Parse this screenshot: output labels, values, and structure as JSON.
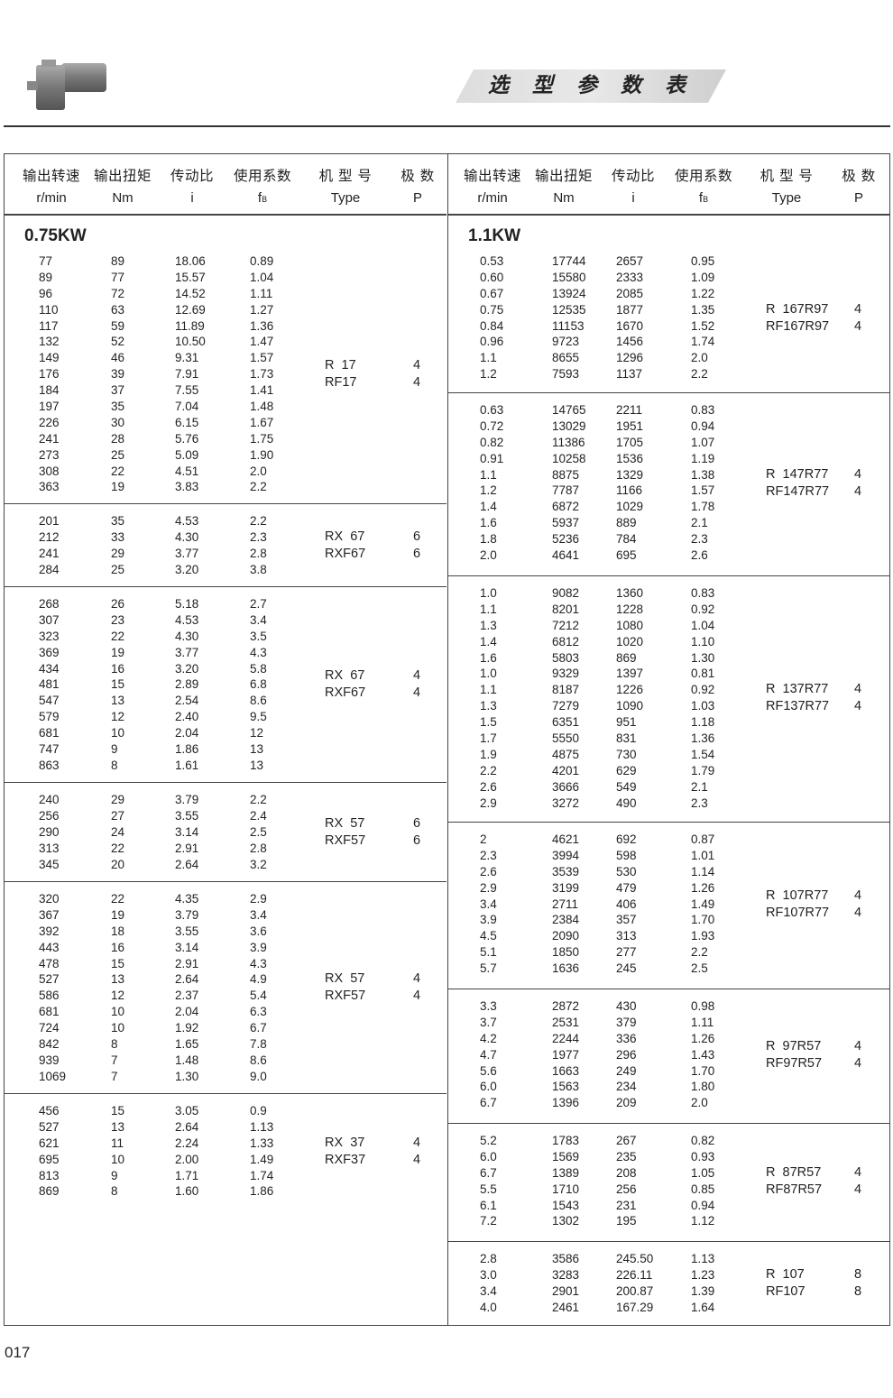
{
  "header": {
    "title": "选 型 参 数 表",
    "product_image": "gear-motor-icon"
  },
  "columns": [
    {
      "zh": "输出转速",
      "unit": "r/min"
    },
    {
      "zh": "输出扭矩",
      "unit": "Nm"
    },
    {
      "zh": "传动比",
      "unit": "i"
    },
    {
      "zh": "使用系数",
      "unit": "f",
      "unit_sub": "B"
    },
    {
      "zh": "机 型 号",
      "unit": "Type"
    },
    {
      "zh": "极  数",
      "unit": "P"
    }
  ],
  "left": {
    "power": "0.75KW",
    "groups": [
      {
        "type": [
          "R  17",
          "RF17"
        ],
        "poles": [
          "4",
          "4"
        ],
        "rows": [
          [
            "77",
            "89",
            "18.06",
            "0.89"
          ],
          [
            "89",
            "77",
            "15.57",
            "1.04"
          ],
          [
            "96",
            "72",
            "14.52",
            "1.11"
          ],
          [
            "110",
            "63",
            "12.69",
            "1.27"
          ],
          [
            "117",
            "59",
            "11.89",
            "1.36"
          ],
          [
            "132",
            "52",
            "10.50",
            "1.47"
          ],
          [
            "149",
            "46",
            "9.31",
            "1.57"
          ],
          [
            "176",
            "39",
            "7.91",
            "1.73"
          ],
          [
            "184",
            "37",
            "7.55",
            "1.41"
          ],
          [
            "197",
            "35",
            "7.04",
            "1.48"
          ],
          [
            "226",
            "30",
            "6.15",
            "1.67"
          ],
          [
            "241",
            "28",
            "5.76",
            "1.75"
          ],
          [
            "273",
            "25",
            "5.09",
            "1.90"
          ],
          [
            "308",
            "22",
            "4.51",
            "2.0"
          ],
          [
            "363",
            "19",
            "3.83",
            "2.2"
          ]
        ]
      },
      {
        "type": [
          "RX  67",
          "RXF67"
        ],
        "poles": [
          "6",
          "6"
        ],
        "rows": [
          [
            "201",
            "35",
            "4.53",
            "2.2"
          ],
          [
            "212",
            "33",
            "4.30",
            "2.3"
          ],
          [
            "241",
            "29",
            "3.77",
            "2.8"
          ],
          [
            "284",
            "25",
            "3.20",
            "3.8"
          ]
        ]
      },
      {
        "type": [
          "RX  67",
          "RXF67"
        ],
        "poles": [
          "4",
          "4"
        ],
        "rows": [
          [
            "268",
            "26",
            "5.18",
            "2.7"
          ],
          [
            "307",
            "23",
            "4.53",
            "3.4"
          ],
          [
            "323",
            "22",
            "4.30",
            "3.5"
          ],
          [
            "369",
            "19",
            "3.77",
            "4.3"
          ],
          [
            "434",
            "16",
            "3.20",
            "5.8"
          ],
          [
            "481",
            "15",
            "2.89",
            "6.8"
          ],
          [
            "547",
            "13",
            "2.54",
            "8.6"
          ],
          [
            "579",
            "12",
            "2.40",
            "9.5"
          ],
          [
            "681",
            "10",
            "2.04",
            "12"
          ],
          [
            "747",
            "9",
            "1.86",
            "13"
          ],
          [
            "863",
            "8",
            "1.61",
            "13"
          ]
        ]
      },
      {
        "type": [
          "RX  57",
          "RXF57"
        ],
        "poles": [
          "6",
          "6"
        ],
        "rows": [
          [
            "240",
            "29",
            "3.79",
            "2.2"
          ],
          [
            "256",
            "27",
            "3.55",
            "2.4"
          ],
          [
            "290",
            "24",
            "3.14",
            "2.5"
          ],
          [
            "313",
            "22",
            "2.91",
            "2.8"
          ],
          [
            "345",
            "20",
            "2.64",
            "3.2"
          ]
        ]
      },
      {
        "type": [
          "RX  57",
          "RXF57"
        ],
        "poles": [
          "4",
          "4"
        ],
        "rows": [
          [
            "320",
            "22",
            "4.35",
            "2.9"
          ],
          [
            "367",
            "19",
            "3.79",
            "3.4"
          ],
          [
            "392",
            "18",
            "3.55",
            "3.6"
          ],
          [
            "443",
            "16",
            "3.14",
            "3.9"
          ],
          [
            "478",
            "15",
            "2.91",
            "4.3"
          ],
          [
            "527",
            "13",
            "2.64",
            "4.9"
          ],
          [
            "586",
            "12",
            "2.37",
            "5.4"
          ],
          [
            "681",
            "10",
            "2.04",
            "6.3"
          ],
          [
            "724",
            "10",
            "1.92",
            "6.7"
          ],
          [
            "842",
            "8",
            "1.65",
            "7.8"
          ],
          [
            "939",
            "7",
            "1.48",
            "8.6"
          ],
          [
            "1069",
            "7",
            "1.30",
            "9.0"
          ]
        ]
      },
      {
        "type": [
          "RX  37",
          "RXF37"
        ],
        "poles": [
          "4",
          "4"
        ],
        "rows": [
          [
            "456",
            "15",
            "3.05",
            "0.9"
          ],
          [
            "527",
            "13",
            "2.64",
            "1.13"
          ],
          [
            "621",
            "11",
            "2.24",
            "1.33"
          ],
          [
            "695",
            "10",
            "2.00",
            "1.49"
          ],
          [
            "813",
            "9",
            "1.71",
            "1.74"
          ],
          [
            "869",
            "8",
            "1.60",
            "1.86"
          ]
        ]
      }
    ]
  },
  "right": {
    "power": "1.1KW",
    "groups": [
      {
        "type": [
          "R  167R97",
          "RF167R97"
        ],
        "poles": [
          "4",
          "4"
        ],
        "rows": [
          [
            "0.53",
            "17744",
            "2657",
            "0.95"
          ],
          [
            "0.60",
            "15580",
            "2333",
            "1.09"
          ],
          [
            "0.67",
            "13924",
            "2085",
            "1.22"
          ],
          [
            "0.75",
            "12535",
            "1877",
            "1.35"
          ],
          [
            "0.84",
            "11153",
            "1670",
            "1.52"
          ],
          [
            "0.96",
            "9723",
            "1456",
            "1.74"
          ],
          [
            "1.1",
            "8655",
            "1296",
            "2.0"
          ],
          [
            "1.2",
            "7593",
            "1137",
            "2.2"
          ]
        ]
      },
      {
        "type": [
          "R  147R77",
          "RF147R77"
        ],
        "poles": [
          "4",
          "4"
        ],
        "rows": [
          [
            "0.63",
            "14765",
            "2211",
            "0.83"
          ],
          [
            "0.72",
            "13029",
            "1951",
            "0.94"
          ],
          [
            "0.82",
            "11386",
            "1705",
            "1.07"
          ],
          [
            "0.91",
            "10258",
            "1536",
            "1.19"
          ],
          [
            "1.1",
            "8875",
            "1329",
            "1.38"
          ],
          [
            "1.2",
            "7787",
            "1166",
            "1.57"
          ],
          [
            "1.4",
            "6872",
            "1029",
            "1.78"
          ],
          [
            "1.6",
            "5937",
            "889",
            "2.1"
          ],
          [
            "1.8",
            "5236",
            "784",
            "2.3"
          ],
          [
            "2.0",
            "4641",
            "695",
            "2.6"
          ]
        ]
      },
      {
        "type": [
          "R  137R77",
          "RF137R77"
        ],
        "poles": [
          "4",
          "4"
        ],
        "rows": [
          [
            "1.0",
            "9082",
            "1360",
            "0.83"
          ],
          [
            "1.1",
            "8201",
            "1228",
            "0.92"
          ],
          [
            "1.3",
            "7212",
            "1080",
            "1.04"
          ],
          [
            "1.4",
            "6812",
            "1020",
            "1.10"
          ],
          [
            "1.6",
            "5803",
            "869",
            "1.30"
          ],
          [
            "1.0",
            "9329",
            "1397",
            "0.81"
          ],
          [
            "1.1",
            "8187",
            "1226",
            "0.92"
          ],
          [
            "1.3",
            "7279",
            "1090",
            "1.03"
          ],
          [
            "1.5",
            "6351",
            "951",
            "1.18"
          ],
          [
            "1.7",
            "5550",
            "831",
            "1.36"
          ],
          [
            "1.9",
            "4875",
            "730",
            "1.54"
          ],
          [
            "2.2",
            "4201",
            "629",
            "1.79"
          ],
          [
            "2.6",
            "3666",
            "549",
            "2.1"
          ],
          [
            "2.9",
            "3272",
            "490",
            "2.3"
          ]
        ]
      },
      {
        "type": [
          "R  107R77",
          "RF107R77"
        ],
        "poles": [
          "4",
          "4"
        ],
        "rows": [
          [
            "2",
            "4621",
            "692",
            "0.87"
          ],
          [
            "2.3",
            "3994",
            "598",
            "1.01"
          ],
          [
            "2.6",
            "3539",
            "530",
            "1.14"
          ],
          [
            "2.9",
            "3199",
            "479",
            "1.26"
          ],
          [
            "3.4",
            "2711",
            "406",
            "1.49"
          ],
          [
            "3.9",
            "2384",
            "357",
            "1.70"
          ],
          [
            "4.5",
            "2090",
            "313",
            "1.93"
          ],
          [
            "5.1",
            "1850",
            "277",
            "2.2"
          ],
          [
            "5.7",
            "1636",
            "245",
            "2.5"
          ]
        ]
      },
      {
        "type": [
          "R  97R57",
          "RF97R57"
        ],
        "poles": [
          "4",
          "4"
        ],
        "rows": [
          [
            "3.3",
            "2872",
            "430",
            "0.98"
          ],
          [
            "3.7",
            "2531",
            "379",
            "1.11"
          ],
          [
            "4.2",
            "2244",
            "336",
            "1.26"
          ],
          [
            "4.7",
            "1977",
            "296",
            "1.43"
          ],
          [
            "5.6",
            "1663",
            "249",
            "1.70"
          ],
          [
            "6.0",
            "1563",
            "234",
            "1.80"
          ],
          [
            "6.7",
            "1396",
            "209",
            "2.0"
          ]
        ]
      },
      {
        "type": [
          "R  87R57",
          "RF87R57"
        ],
        "poles": [
          "4",
          "4"
        ],
        "rows": [
          [
            "5.2",
            "1783",
            "267",
            "0.82"
          ],
          [
            "6.0",
            "1569",
            "235",
            "0.93"
          ],
          [
            "6.7",
            "1389",
            "208",
            "1.05"
          ],
          [
            "5.5",
            "1710",
            "256",
            "0.85"
          ],
          [
            "6.1",
            "1543",
            "231",
            "0.94"
          ],
          [
            "7.2",
            "1302",
            "195",
            "1.12"
          ]
        ]
      },
      {
        "type": [
          "R  107",
          "RF107"
        ],
        "poles": [
          "8",
          "8"
        ],
        "rows": [
          [
            "2.8",
            "3586",
            "245.50",
            "1.13"
          ],
          [
            "3.0",
            "3283",
            "226.11",
            "1.23"
          ],
          [
            "3.4",
            "2901",
            "200.87",
            "1.39"
          ],
          [
            "4.0",
            "2461",
            "167.29",
            "1.64"
          ]
        ]
      }
    ]
  },
  "page_number": "017"
}
